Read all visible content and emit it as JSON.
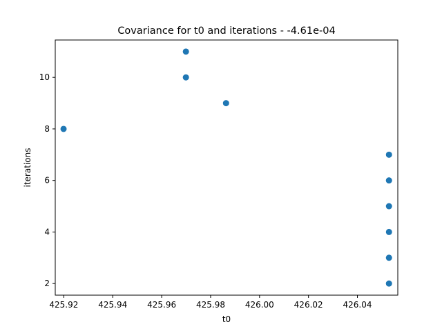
{
  "chart_data": {
    "type": "scatter",
    "title": "Covariance for t0 and iterations - -4.61e-04",
    "xlabel": "t0",
    "ylabel": "iterations",
    "xlim": [
      425.9165,
      426.0565
    ],
    "ylim": [
      1.55,
      11.45
    ],
    "xticks": [
      425.92,
      425.94,
      425.96,
      425.98,
      426.0,
      426.02,
      426.04
    ],
    "xtick_labels": [
      "425.92",
      "425.94",
      "425.96",
      "425.98",
      "426.00",
      "426.02",
      "426.04"
    ],
    "yticks": [
      2,
      4,
      6,
      8,
      10
    ],
    "ytick_labels": [
      "2",
      "4",
      "6",
      "8",
      "10"
    ],
    "grid": false,
    "marker_color": "#1f77b4",
    "points": [
      {
        "x": 425.9199,
        "y": 8
      },
      {
        "x": 425.9699,
        "y": 11
      },
      {
        "x": 425.9699,
        "y": 10
      },
      {
        "x": 425.9863,
        "y": 9
      },
      {
        "x": 426.0529,
        "y": 7
      },
      {
        "x": 426.0529,
        "y": 6
      },
      {
        "x": 426.0529,
        "y": 5
      },
      {
        "x": 426.0529,
        "y": 4
      },
      {
        "x": 426.0529,
        "y": 3
      },
      {
        "x": 426.0529,
        "y": 2
      }
    ]
  }
}
